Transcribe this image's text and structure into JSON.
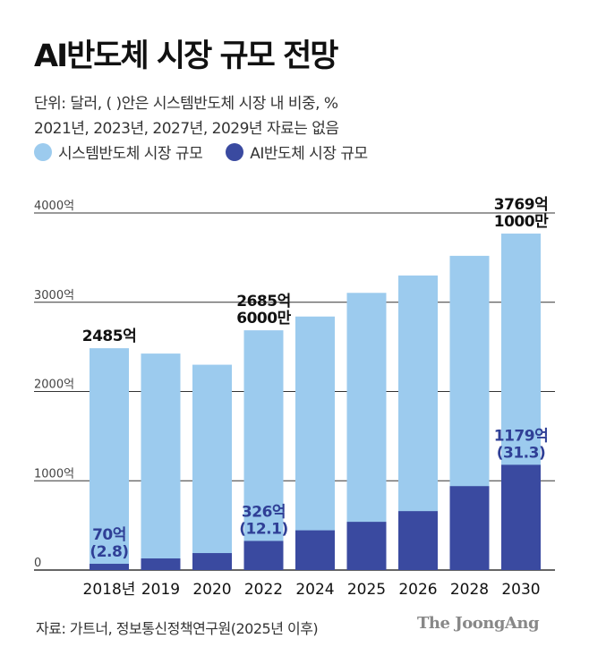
{
  "header": {
    "title": "AI반도체 시장 규모 전망",
    "note_line1": "단위: 달러, ( )안은 시스템반도체 시장 내 비중, %",
    "note_line2": "2021년, 2023년, 2027년, 2029년 자료는 없음"
  },
  "legend": [
    {
      "label": "시스템반도체 시장 규모",
      "color": "#9ccbee"
    },
    {
      "label": "AI반도체 시장 규모",
      "color": "#3a4aa0"
    }
  ],
  "footer": {
    "source": "자료: 가트너, 정보통신정책연구원(2025년 이후)",
    "brand": "The JoongAng"
  },
  "chart_data": {
    "type": "bar",
    "stacked": "overlay",
    "categories": [
      "2018년",
      "2019",
      "2020",
      "2022",
      "2024",
      "2025",
      "2026",
      "2028",
      "2030"
    ],
    "series": [
      {
        "name": "시스템반도체 시장 규모",
        "color": "#9ccbee",
        "values": [
          2485,
          2425,
          2300,
          2685.6,
          2840,
          3105,
          3300,
          3520,
          3769.1
        ]
      },
      {
        "name": "AI반도체 시장 규모",
        "color": "#3a4aa0",
        "values": [
          70,
          130,
          190,
          326,
          445,
          540,
          660,
          940,
          1179
        ]
      }
    ],
    "yticks": [
      0,
      1000,
      2000,
      3000,
      4000
    ],
    "ytick_labels": [
      "0",
      "1000억",
      "2000억",
      "3000억",
      "4000억"
    ],
    "ylim": [
      0,
      4000
    ],
    "grid": true,
    "annotations": [
      {
        "index": 0,
        "series": 0,
        "lines": [
          "2485억"
        ]
      },
      {
        "index": 3,
        "series": 0,
        "lines": [
          "2685억",
          "6000만"
        ]
      },
      {
        "index": 8,
        "series": 0,
        "lines": [
          "3769억",
          "1000만"
        ]
      },
      {
        "index": 0,
        "series": 1,
        "lines": [
          "70억",
          "(2.8)"
        ]
      },
      {
        "index": 3,
        "series": 1,
        "lines": [
          "326억",
          "(12.1)"
        ]
      },
      {
        "index": 8,
        "series": 1,
        "lines": [
          "1179억",
          "(31.3)"
        ]
      }
    ]
  }
}
